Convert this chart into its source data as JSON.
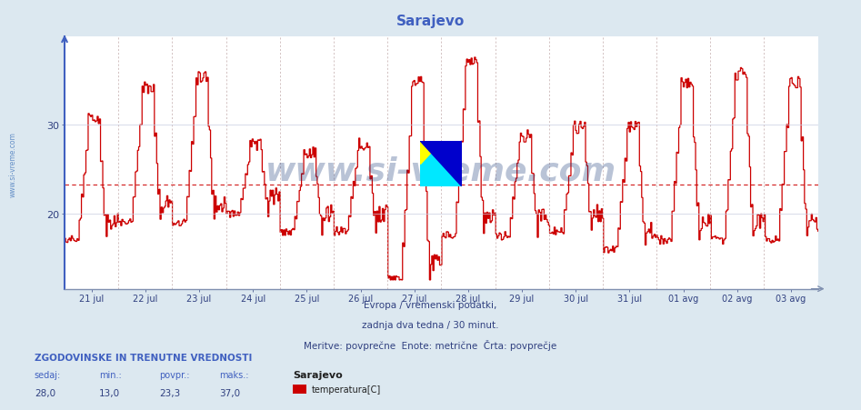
{
  "title": "Sarajevo",
  "title_color": "#4060c0",
  "bg_color": "#dce8f0",
  "plot_bg_color": "#ffffff",
  "grid_color": "#c8cce0",
  "grid_color_dashed": "#d0a0a0",
  "line_color": "#cc0000",
  "avg_line_color": "#cc0000",
  "avg_value": 23.3,
  "y_min": 13.0,
  "y_max": 40.0,
  "y_ticks": [
    20,
    30
  ],
  "x_labels": [
    "21 jul",
    "22 jul",
    "23 jul",
    "24 jul",
    "25 jul",
    "26 jul",
    "27 jul",
    "28 jul",
    "29 jul",
    "30 jul",
    "31 jul",
    "01 avg",
    "02 avg",
    "03 avg"
  ],
  "xlabel_text1": "Evropa / vremenski podatki,",
  "xlabel_text2": "zadnja dva tedna / 30 minut.",
  "xlabel_text3": "Meritve: povprečne  Enote: metrične  Črta: povprečje",
  "watermark": "www.si-vreme.com",
  "watermark_color": "#1a3a7a",
  "sidebar_text": "www.si-vreme.com",
  "stats_header": "ZGODOVINSKE IN TRENUTNE VREDNOSTI",
  "stats_labels": [
    "sedaj:",
    "min.:",
    "povpr.:",
    "maks.:"
  ],
  "stats_values": [
    "28,0",
    "13,0",
    "23,3",
    "37,0"
  ],
  "legend_station": "Sarajevo",
  "legend_label": "temperatura[C]",
  "legend_color": "#cc0000",
  "total_points": 672,
  "num_days": 14,
  "logo_yellow": "#ffff00",
  "logo_cyan": "#00e8ff",
  "logo_blue": "#0000cc"
}
